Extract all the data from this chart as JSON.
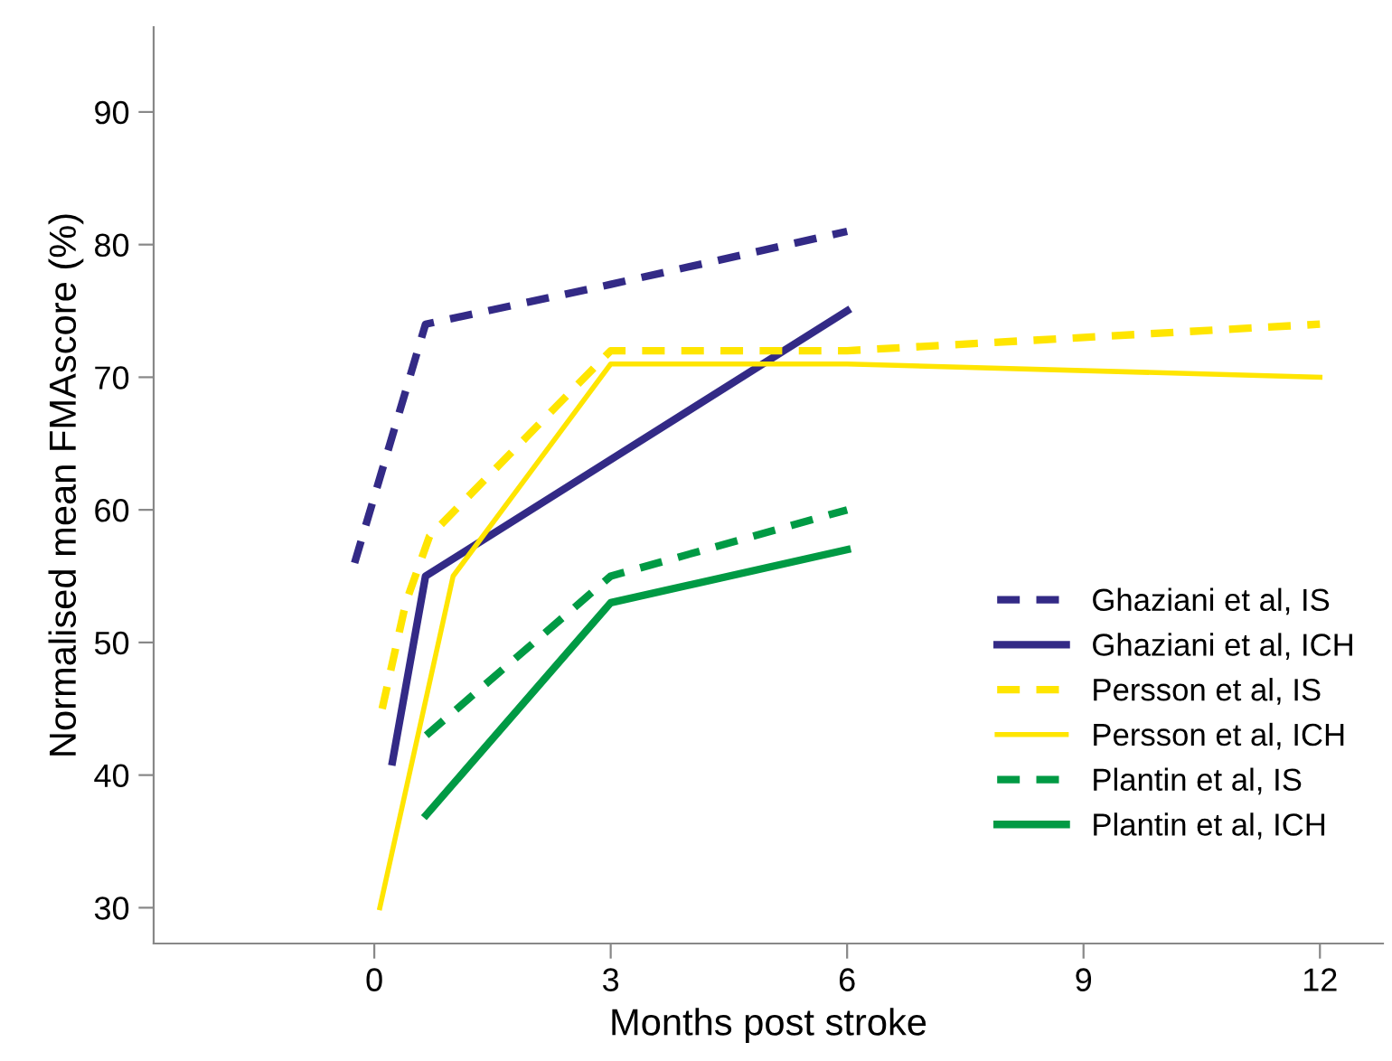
{
  "chart_data": {
    "type": "line",
    "xlabel": "Months post stroke",
    "ylabel": "Normalised mean FMAscore (%)",
    "xlim": [
      -2.8,
      12.8
    ],
    "ylim": [
      27.3,
      96.4
    ],
    "xticks": [
      0,
      3,
      6,
      9,
      12
    ],
    "yticks": [
      30,
      40,
      50,
      60,
      70,
      80,
      90
    ],
    "grid": false,
    "legend": "bottom right",
    "marker": "none",
    "series": [
      {
        "name": "Ghaziani et al, IS",
        "color": "#332a86",
        "line_style": "dashed",
        "x": [
          -0.25,
          0.65,
          3,
          6
        ],
        "values": [
          56,
          74,
          77,
          81
        ]
      },
      {
        "name": "Ghaziani et al, ICH",
        "color": "#332a86",
        "line_style": "solid",
        "x": [
          0.23,
          0.65,
          6
        ],
        "values": [
          41,
          55,
          75
        ]
      },
      {
        "name": "Persson et al, IS",
        "color": "#ffe500",
        "line_style": "dashed",
        "x": [
          0.1,
          0.4,
          0.7,
          3,
          6,
          12
        ],
        "values": [
          45,
          53,
          58,
          72,
          72,
          74
        ]
      },
      {
        "name": "Persson et al, ICH",
        "color": "#ffe500",
        "line_style": "solid",
        "x": [
          0.07,
          1,
          3,
          6,
          12
        ],
        "values": [
          30,
          55,
          71,
          71,
          70
        ]
      },
      {
        "name": "Plantin et al, IS",
        "color": "#009a44",
        "line_style": "dashed",
        "x": [
          0.66,
          3,
          6
        ],
        "values": [
          43,
          55,
          60
        ]
      },
      {
        "name": "Plantin et al, ICH",
        "color": "#009a44",
        "line_style": "solid",
        "x": [
          0.66,
          3,
          6
        ],
        "values": [
          37,
          53,
          57
        ]
      }
    ]
  }
}
